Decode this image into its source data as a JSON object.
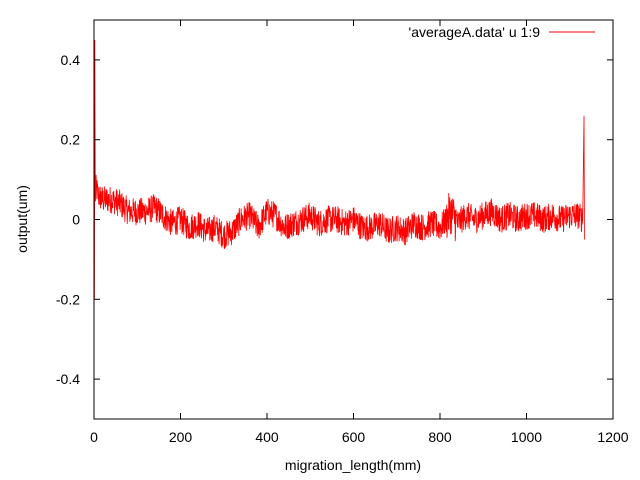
{
  "chart_data": {
    "type": "line",
    "title": "",
    "xlabel": "migration_length(mm)",
    "ylabel": "output(um)",
    "xlim": [
      0,
      1200
    ],
    "ylim": [
      -0.5,
      0.5
    ],
    "xticks": [
      0,
      200,
      400,
      600,
      800,
      1000,
      1200
    ],
    "xtick_labels": [
      "0",
      "200",
      "400",
      "600",
      "800",
      "1000",
      "1200"
    ],
    "yticks": [
      -0.4,
      -0.2,
      0,
      0.2,
      0.4
    ],
    "ytick_labels": [
      "-0.4",
      "-0.2",
      "0",
      "0.2",
      "0.4"
    ],
    "grid": false,
    "legend_position": "top-right",
    "series": [
      {
        "name": "'averageA.data' u 1:9",
        "color": "#ff0000",
        "x": [
          0,
          1,
          2,
          3,
          5,
          10,
          20,
          40,
          60,
          80,
          100,
          120,
          140,
          160,
          180,
          200,
          220,
          240,
          260,
          280,
          300,
          320,
          340,
          360,
          380,
          400,
          420,
          440,
          460,
          480,
          500,
          520,
          540,
          560,
          580,
          600,
          620,
          640,
          660,
          680,
          700,
          720,
          740,
          760,
          780,
          800,
          815,
          825,
          840,
          860,
          880,
          900,
          920,
          940,
          960,
          980,
          1000,
          1020,
          1040,
          1060,
          1080,
          1100,
          1120,
          1130,
          1132,
          1133,
          1134
        ],
        "y": [
          0.5,
          -0.2,
          0.45,
          0.05,
          0.08,
          0.06,
          0.05,
          0.05,
          0.04,
          0.02,
          0.02,
          0.02,
          0.03,
          0.01,
          -0.01,
          0.0,
          -0.02,
          -0.01,
          -0.03,
          -0.02,
          -0.04,
          -0.03,
          0.0,
          0.01,
          -0.02,
          0.02,
          0.01,
          -0.02,
          -0.01,
          0.0,
          0.01,
          -0.01,
          0.0,
          0.0,
          -0.01,
          0.0,
          -0.02,
          -0.02,
          -0.01,
          -0.03,
          -0.02,
          -0.03,
          -0.01,
          -0.02,
          -0.01,
          -0.02,
          0.0,
          0.02,
          -0.01,
          0.01,
          0.0,
          0.01,
          0.02,
          0.0,
          0.01,
          0.0,
          0.01,
          0.01,
          0.0,
          0.01,
          0.0,
          0.01,
          0.01,
          0.0,
          0.18,
          0.26,
          -0.05
        ],
        "noise_amplitude": 0.035
      }
    ]
  }
}
